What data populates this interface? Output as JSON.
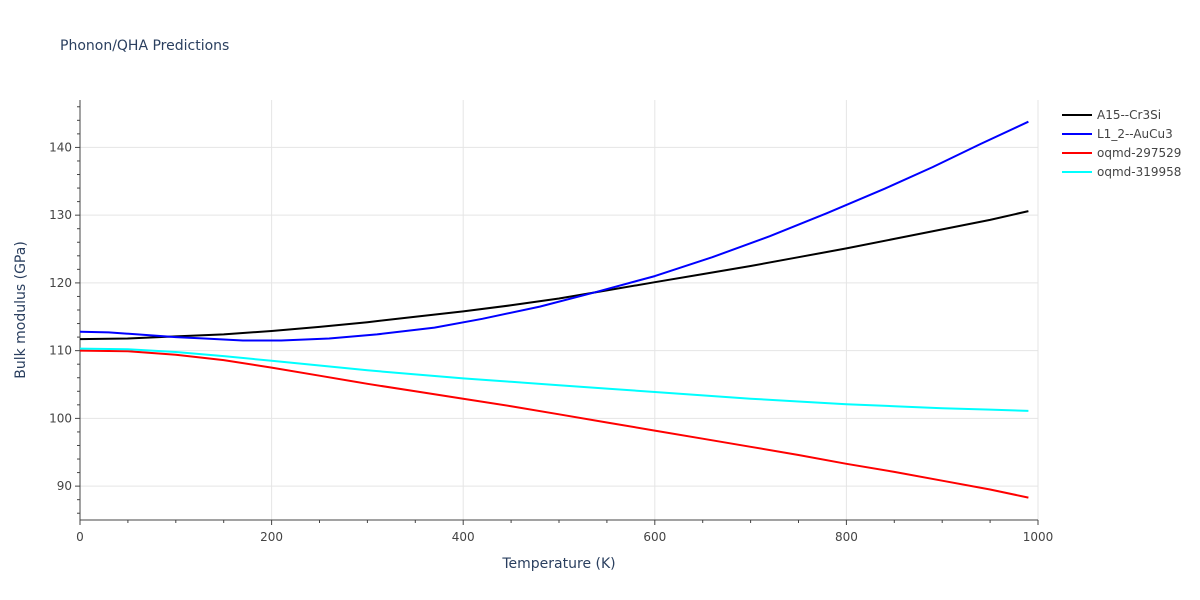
{
  "chart_data": {
    "type": "line",
    "title": "Phonon/QHA Predictions",
    "xlabel": "Temperature (K)",
    "ylabel": "Bulk modulus (GPa)",
    "xlim": [
      0,
      1000
    ],
    "ylim": [
      85,
      147
    ],
    "x_ticks": [
      0,
      200,
      400,
      600,
      800,
      1000
    ],
    "y_ticks": [
      90,
      100,
      110,
      120,
      130,
      140
    ],
    "grid": true,
    "legend_position": "top-right, outside plot",
    "series": [
      {
        "name": "A15--Cr3Si",
        "color": "#000000",
        "x": [
          0,
          50,
          100,
          150,
          200,
          250,
          300,
          350,
          400,
          450,
          500,
          550,
          600,
          650,
          700,
          750,
          800,
          850,
          900,
          950,
          990
        ],
        "y": [
          111.7,
          111.8,
          112.1,
          112.4,
          112.9,
          113.5,
          114.2,
          115.0,
          115.8,
          116.7,
          117.7,
          118.9,
          120.1,
          121.3,
          122.5,
          123.8,
          125.1,
          126.5,
          127.9,
          129.3,
          130.6
        ]
      },
      {
        "name": "L1_2--AuCu3",
        "color": "#0000ff",
        "x": [
          0,
          30,
          60,
          100,
          130,
          170,
          210,
          260,
          310,
          370,
          420,
          480,
          540,
          600,
          660,
          720,
          780,
          840,
          890,
          940,
          990
        ],
        "y": [
          112.8,
          112.7,
          112.4,
          112.0,
          111.8,
          111.5,
          111.5,
          111.8,
          112.4,
          113.4,
          114.7,
          116.5,
          118.7,
          121.0,
          123.8,
          126.9,
          130.3,
          133.9,
          137.1,
          140.5,
          143.8
        ]
      },
      {
        "name": "oqmd-297529",
        "color": "#ff0000",
        "x": [
          0,
          50,
          100,
          150,
          200,
          250,
          300,
          350,
          400,
          450,
          500,
          550,
          600,
          650,
          700,
          750,
          800,
          850,
          900,
          950,
          990
        ],
        "y": [
          110.0,
          109.9,
          109.4,
          108.6,
          107.5,
          106.3,
          105.1,
          104.0,
          102.9,
          101.8,
          100.6,
          99.4,
          98.2,
          97.0,
          95.8,
          94.6,
          93.3,
          92.1,
          90.8,
          89.5,
          88.3
        ]
      },
      {
        "name": "oqmd-319958",
        "color": "#00ffff",
        "x": [
          0,
          50,
          100,
          150,
          200,
          250,
          300,
          350,
          400,
          450,
          500,
          550,
          600,
          650,
          700,
          750,
          800,
          850,
          900,
          950,
          990
        ],
        "y": [
          110.3,
          110.2,
          109.8,
          109.2,
          108.5,
          107.8,
          107.1,
          106.5,
          105.9,
          105.4,
          104.9,
          104.4,
          103.9,
          103.4,
          102.9,
          102.5,
          102.1,
          101.8,
          101.5,
          101.3,
          101.1
        ]
      }
    ]
  }
}
